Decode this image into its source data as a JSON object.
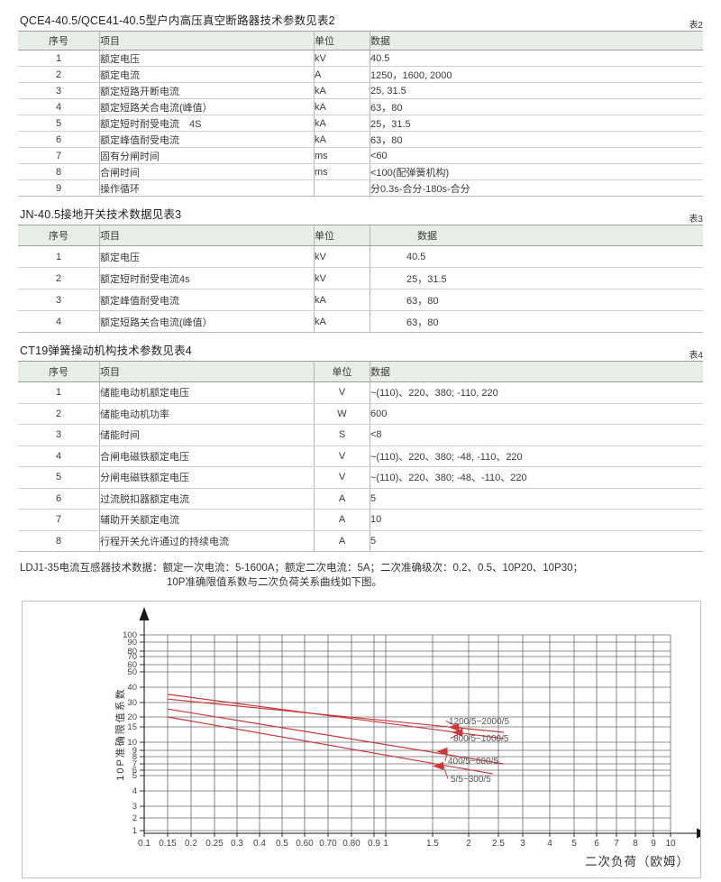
{
  "sections": [
    {
      "title": "QCE4-40.5/QCE41-40.5型户内高压真空断路器技术参数见表2",
      "tag": "表2",
      "headers": [
        "序号",
        "项目",
        "单位",
        "数据"
      ],
      "rows": [
        [
          "1",
          "额定电压",
          "kV",
          "40.5"
        ],
        [
          "2",
          "额定电流",
          "A",
          "1250，1600, 2000"
        ],
        [
          "3",
          "额定短路开断电流",
          "kA",
          "25, 31.5"
        ],
        [
          "4",
          "额定短路关合电流(峰值）",
          "kA",
          "63，80"
        ],
        [
          "5",
          "额定短时耐受电流　4S",
          "kA",
          "25，31.5"
        ],
        [
          "6",
          "额定峰值耐受电流",
          "kA",
          "63，80"
        ],
        [
          "7",
          "固有分闸时间",
          "ms",
          "<60"
        ],
        [
          "8",
          "合闸时间",
          "ms",
          "<100(配弹簧机构)"
        ],
        [
          "9",
          "操作循环",
          "",
          "分0.3s-合分-180s-合分"
        ]
      ]
    },
    {
      "title": "JN-40.5接地开关技术数据见表3",
      "tag": "表3",
      "headers": [
        "序号",
        "项目",
        "单位",
        "数据"
      ],
      "rows": [
        [
          "1",
          "额定电压",
          "kV",
          "40.5"
        ],
        [
          "2",
          "额定短时耐受电流4s",
          "kV",
          "25，31.5"
        ],
        [
          "3",
          "额定峰值耐受电流",
          "kA",
          "63，80"
        ],
        [
          "4",
          "额定短路关合电流(峰值）",
          "kA",
          "63，80"
        ]
      ]
    },
    {
      "title": "CT19弹簧操动机构技术参数见表4",
      "tag": "表4",
      "headers": [
        "序号",
        "项目",
        "单位",
        "数据"
      ],
      "rows": [
        [
          "1",
          "储能电动机额定电压",
          "V",
          "~(110)、220、380; -110, 220"
        ],
        [
          "2",
          "储能电动机功率",
          "W",
          "600"
        ],
        [
          "3",
          "储能时间",
          "S",
          "<8"
        ],
        [
          "4",
          "合闸电磁铁额定电压",
          "V",
          "~(110)、220、380; -48, -110、220"
        ],
        [
          "5",
          "分闸电磁铁额定电压",
          "V",
          "~(110)、220、380; -48、-110、220"
        ],
        [
          "6",
          "过流脱扣器额定电流",
          "A",
          "5"
        ],
        [
          "7",
          "辅助开关额定电流",
          "A",
          "10"
        ],
        [
          "8",
          "行程开关允许通过的持续电流",
          "A",
          "5"
        ]
      ]
    }
  ],
  "note": {
    "line1": "LDJ1-35电流互感器技术数据：额定一次电流：5-1600A；额定二次电流：5A；二次准确级次：0.2、0.5、10P20、10P30；",
    "line2": "10P准确限值系数与二次负荷关系曲线如下图。"
  },
  "chart_data": {
    "type": "line",
    "x_axis": {
      "label": "二次负荷（欧姆）",
      "scale": "log-like",
      "ticks": [
        0.1,
        0.15,
        0.2,
        0.25,
        0.3,
        0.4,
        0.5,
        0.6,
        0.7,
        0.8,
        0.9,
        1,
        1.5,
        2,
        2.5,
        3,
        4,
        5,
        6,
        7,
        8,
        9,
        10
      ],
      "tick_labels": [
        "0.1",
        "0.15",
        "0.2",
        "0.25",
        "0.3",
        "0.4",
        "0.5",
        "0.60",
        "0.70",
        "0.80",
        "0.9",
        "1",
        "1.5",
        "2",
        "2.5",
        "3",
        "4",
        "5",
        "6",
        "7",
        "8",
        "9",
        "10"
      ],
      "range": [
        0.1,
        10
      ]
    },
    "y_axis": {
      "label": "10P准确限值系数",
      "scale": "log-like",
      "ticks": [
        100,
        90,
        80,
        70,
        60,
        50,
        40,
        30,
        20,
        15,
        10,
        9,
        8,
        7,
        6,
        5,
        4,
        3,
        2,
        1
      ],
      "range": [
        1,
        100
      ]
    },
    "grid": true,
    "series": [
      {
        "name": "800/5~1000/5",
        "points": [
          [
            0.15,
            35
          ],
          [
            2.6,
            11
          ]
        ]
      },
      {
        "name": "1200/5~2000/5",
        "points": [
          [
            0.15,
            32
          ],
          [
            2.6,
            13
          ]
        ]
      },
      {
        "name": "400/5~600/5",
        "points": [
          [
            0.15,
            25
          ],
          [
            2.6,
            7
          ]
        ]
      },
      {
        "name": "5/5~300/5",
        "points": [
          [
            0.15,
            20
          ],
          [
            2.4,
            5.3
          ]
        ]
      }
    ],
    "annotations": [
      {
        "label": "1200/5~2000/5",
        "series_name": "1200/5~2000/5",
        "arrow_x": 1.7
      },
      {
        "label": "800/5~1000/5",
        "series_name": "800/5~1000/5",
        "arrow_x": 1.75
      },
      {
        "label": "400/5~600/5",
        "series_name": "400/5~600/5",
        "arrow_x": 1.55
      },
      {
        "label": "5/5~300/5",
        "series_name": "5/5~300/5",
        "arrow_x": 1.5
      }
    ],
    "colors": {
      "line": "#c9393d",
      "grid": "#6b6b6b",
      "axis": "#1a1a1a",
      "label_text": "#555555"
    }
  }
}
